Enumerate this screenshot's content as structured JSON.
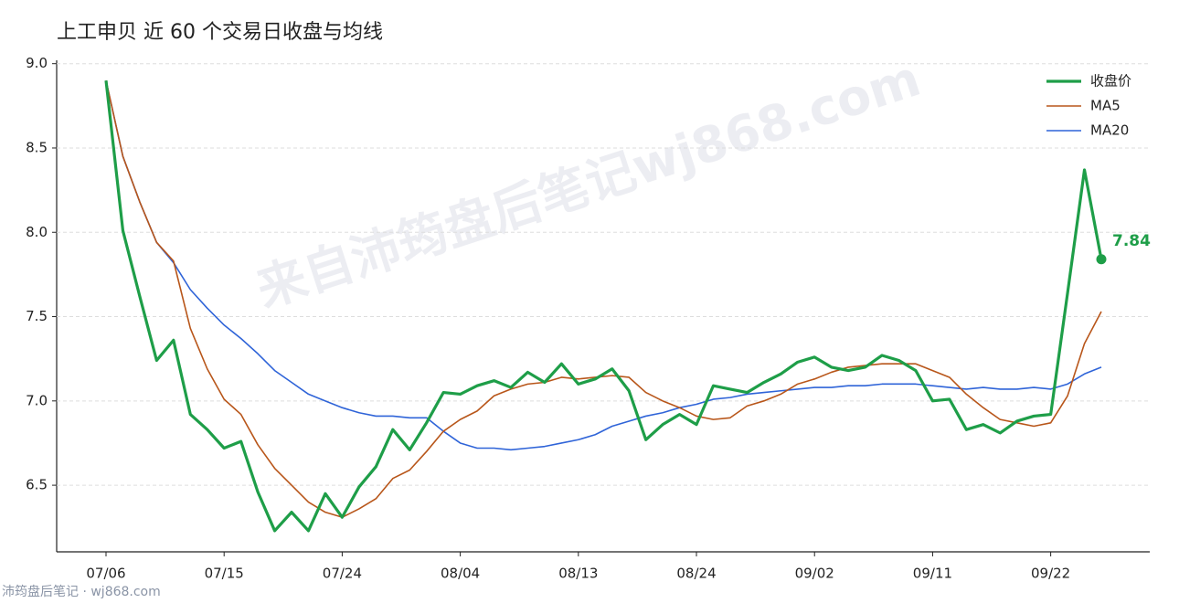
{
  "chart_data": {
    "type": "line",
    "title": "上工申贝 近 60 个交易日收盘与均线",
    "watermark": "来自沛筠盘后笔记wj868.com",
    "footer": "沛筠盘后笔记 · wj868.com",
    "categories": [
      "07/06",
      null,
      null,
      null,
      null,
      null,
      null,
      "07/15",
      null,
      null,
      null,
      null,
      null,
      null,
      "07/24",
      null,
      null,
      null,
      null,
      null,
      null,
      "08/04",
      null,
      null,
      null,
      null,
      null,
      null,
      "08/13",
      null,
      null,
      null,
      null,
      null,
      null,
      "08/24",
      null,
      null,
      null,
      null,
      null,
      null,
      "09/02",
      null,
      null,
      null,
      null,
      null,
      null,
      "09/11",
      null,
      null,
      null,
      null,
      null,
      null,
      "09/22",
      null,
      null,
      null
    ],
    "ylim": [
      6.105,
      9.02
    ],
    "yticks": [
      6.5,
      {
        "value": 7,
        "label": "7.0"
      },
      7.5,
      {
        "value": 8,
        "label": "8.0"
      },
      8.5,
      {
        "value": 9,
        "label": "9.0"
      }
    ],
    "grid": true,
    "legend": "upper right",
    "series": [
      {
        "name": "收盘价",
        "color": "#1e9e48",
        "width": 3.2,
        "values": [
          8.9,
          8.01,
          7.62,
          7.24,
          7.36,
          6.92,
          6.83,
          6.72,
          6.76,
          6.46,
          6.23,
          6.34,
          6.23,
          6.45,
          6.31,
          6.49,
          6.61,
          6.83,
          6.71,
          6.87,
          7.05,
          7.04,
          7.09,
          7.12,
          7.08,
          7.17,
          7.11,
          7.22,
          7.1,
          7.13,
          7.19,
          7.06,
          6.77,
          6.86,
          6.92,
          6.86,
          7.09,
          7.07,
          7.05,
          7.11,
          7.16,
          7.23,
          7.26,
          7.2,
          7.18,
          7.2,
          7.27,
          7.24,
          7.18,
          7.0,
          7.01,
          6.83,
          6.86,
          6.81,
          6.88,
          6.91,
          6.92,
          7.64,
          8.37,
          7.84
        ]
      },
      {
        "name": "MA5",
        "color": "#b8561a",
        "width": 1.6,
        "values": [
          8.9,
          8.45,
          8.18,
          7.94,
          7.83,
          7.43,
          7.19,
          7.01,
          6.92,
          6.74,
          6.6,
          6.5,
          6.4,
          6.34,
          6.31,
          6.36,
          6.42,
          6.54,
          6.59,
          6.7,
          6.82,
          6.89,
          6.94,
          7.03,
          7.07,
          7.1,
          7.11,
          7.14,
          7.13,
          7.14,
          7.15,
          7.14,
          7.05,
          7.0,
          6.96,
          6.91,
          6.89,
          6.9,
          6.97,
          7.0,
          7.04,
          7.1,
          7.13,
          7.17,
          7.2,
          7.21,
          7.22,
          7.22,
          7.22,
          7.18,
          7.14,
          7.04,
          6.96,
          6.89,
          6.87,
          6.85,
          6.87,
          7.03,
          7.34,
          7.53
        ]
      },
      {
        "name": "MA20",
        "color": "#2f64d8",
        "width": 1.6,
        "values": [
          8.9,
          8.45,
          8.18,
          7.94,
          7.82,
          7.66,
          7.55,
          7.45,
          7.37,
          7.28,
          7.18,
          7.11,
          7.04,
          7.0,
          6.96,
          6.93,
          6.91,
          6.91,
          6.9,
          6.9,
          6.82,
          6.75,
          6.72,
          6.72,
          6.71,
          6.72,
          6.73,
          6.75,
          6.77,
          6.8,
          6.85,
          6.88,
          6.91,
          6.93,
          6.96,
          6.98,
          7.01,
          7.02,
          7.04,
          7.05,
          7.06,
          7.07,
          7.08,
          7.08,
          7.09,
          7.09,
          7.1,
          7.1,
          7.1,
          7.09,
          7.08,
          7.07,
          7.08,
          7.07,
          7.07,
          7.08,
          7.07,
          7.1,
          7.16,
          7.2
        ]
      }
    ]
  }
}
